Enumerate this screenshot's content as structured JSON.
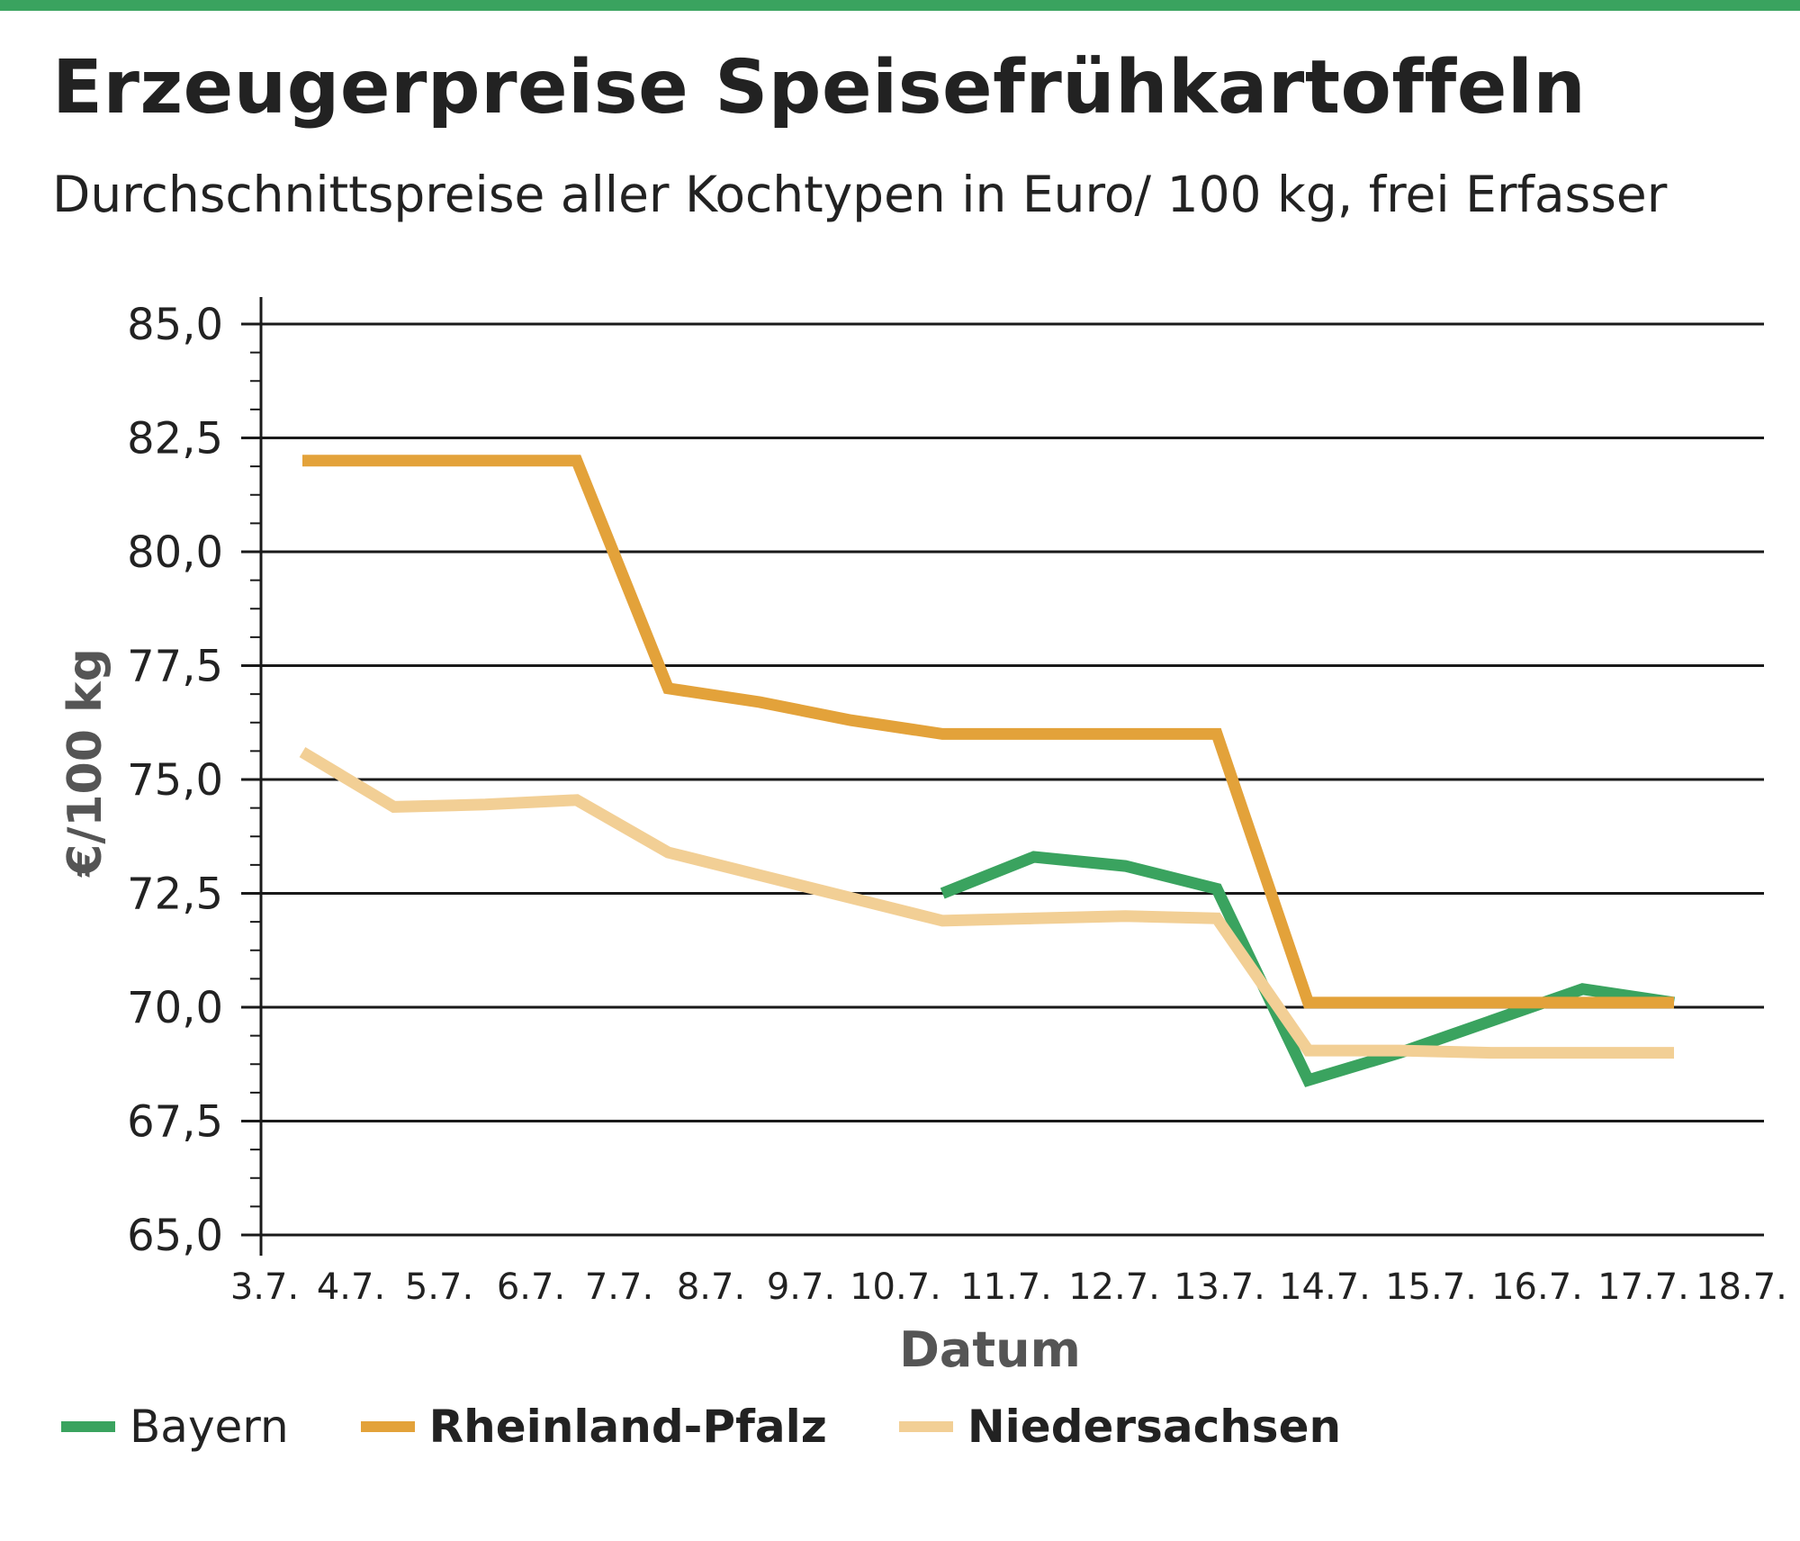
{
  "header": {
    "title": "Erzeugerpreise Speisefrühkartoffeln",
    "subtitle": "Durchschnittspreise aller Kochtypen in Euro/ 100 kg, frei Erfasser"
  },
  "colors": {
    "accent_bar": "#3aa35f",
    "Bayern": "#3aa35f",
    "Rheinland-Pfalz": "#e3a23a",
    "Niedersachsen": "#f2cf95"
  },
  "chart_data": {
    "type": "line",
    "xlabel": "Datum",
    "ylabel": "€/100 kg",
    "categories": [
      "3.7.",
      "4.7.",
      "5.7.",
      "6.7.",
      "7.7.",
      "8.7.",
      "9.7.",
      "10.7.",
      "11.7.",
      "12.7.",
      "13.7.",
      "14.7.",
      "15.7.",
      "16.7.",
      "17.7.",
      "18.7."
    ],
    "yticks": [
      "65,0",
      "67,5",
      "70,0",
      "72,5",
      "75,0",
      "77,5",
      "80,0",
      "82,5",
      "85,0"
    ],
    "ylim": [
      65,
      85
    ],
    "grid": true,
    "legend_position": "bottom-left",
    "series": [
      {
        "name": "Bayern",
        "color": "#3aa35f",
        "points": [
          {
            "x": "10.7.",
            "y": 72.5
          },
          {
            "x": "11.7.",
            "y": 73.3
          },
          {
            "x": "12.7.",
            "y": 73.1
          },
          {
            "x": "13.7.",
            "y": 72.6
          },
          {
            "x": "14.7.",
            "y": 68.4
          },
          {
            "x": "15.7.",
            "y": 69.0
          },
          {
            "x": "16.7.",
            "y": 69.7
          },
          {
            "x": "17.7.",
            "y": 70.4
          },
          {
            "x": "18.7.",
            "y": 70.1
          }
        ]
      },
      {
        "name": "Rheinland-Pfalz",
        "color": "#e3a23a",
        "points": [
          {
            "x": "3.7.",
            "y": 82.0
          },
          {
            "x": "4.7.",
            "y": 82.0
          },
          {
            "x": "5.7.",
            "y": 82.0
          },
          {
            "x": "6.7.",
            "y": 82.0
          },
          {
            "x": "7.7.",
            "y": 77.0
          },
          {
            "x": "8.7.",
            "y": 76.7
          },
          {
            "x": "9.7.",
            "y": 76.3
          },
          {
            "x": "10.7.",
            "y": 76.0
          },
          {
            "x": "11.7.",
            "y": 76.0
          },
          {
            "x": "12.7.",
            "y": 76.0
          },
          {
            "x": "13.7.",
            "y": 76.0
          },
          {
            "x": "14.7.",
            "y": 70.1
          },
          {
            "x": "15.7.",
            "y": 70.1
          },
          {
            "x": "16.7.",
            "y": 70.1
          },
          {
            "x": "17.7.",
            "y": 70.1
          },
          {
            "x": "18.7.",
            "y": 70.1
          }
        ]
      },
      {
        "name": "Niedersachsen",
        "color": "#f2cf95",
        "points": [
          {
            "x": "3.7.",
            "y": 75.6
          },
          {
            "x": "4.7.",
            "y": 74.4
          },
          {
            "x": "5.7.",
            "y": 74.45
          },
          {
            "x": "6.7.",
            "y": 74.55
          },
          {
            "x": "7.7.",
            "y": 73.4
          },
          {
            "x": "8.7.",
            "y": 72.9
          },
          {
            "x": "9.7.",
            "y": 72.4
          },
          {
            "x": "10.7.",
            "y": 71.9
          },
          {
            "x": "11.7.",
            "y": 71.95
          },
          {
            "x": "12.7.",
            "y": 72.0
          },
          {
            "x": "13.7.",
            "y": 71.95
          },
          {
            "x": "14.7.",
            "y": 69.05
          },
          {
            "x": "15.7.",
            "y": 69.05
          },
          {
            "x": "16.7.",
            "y": 69.0
          },
          {
            "x": "17.7.",
            "y": 69.0
          },
          {
            "x": "18.7.",
            "y": 69.0
          }
        ]
      }
    ]
  }
}
